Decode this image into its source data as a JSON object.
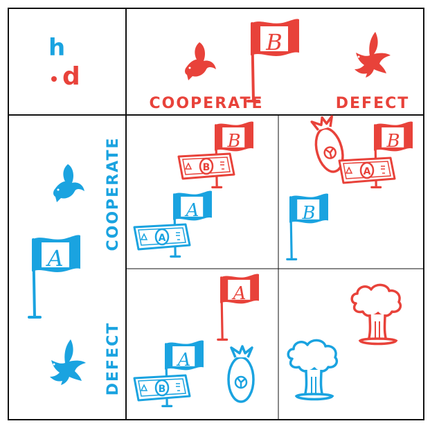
{
  "logo": {
    "top": "h",
    "bottom": "d",
    "red": "#e8423a",
    "blue": "#1aa3e0"
  },
  "colors": {
    "red": "#e8423a",
    "blue": "#1aa3e0",
    "grid": "#111111"
  },
  "columns": {
    "cooperate_label": "COOPERATE",
    "defect_label": "DEFECT"
  },
  "rows": {
    "cooperate_label": "COOPERATE",
    "defect_label": "DEFECT"
  },
  "players": {
    "column_flag_letter": "B",
    "row_flag_letter": "A"
  },
  "icons": [
    "dove-icon",
    "hawk-icon",
    "flag-icon",
    "banknote-icon",
    "bomb-icon",
    "mushroom-cloud-icon"
  ],
  "cells": {
    "cc": {
      "red_flag": "B",
      "red_note": "B",
      "blue_flag": "A",
      "blue_note": "A"
    },
    "cd": {
      "red_flag": "B",
      "red_note": "A",
      "blue_flag": "B",
      "red_bomb": true
    },
    "dc": {
      "red_flag": "A",
      "blue_flag": "A",
      "blue_note": "B",
      "blue_bomb": true
    },
    "dd": {
      "red_cloud": true,
      "blue_cloud": true
    }
  }
}
